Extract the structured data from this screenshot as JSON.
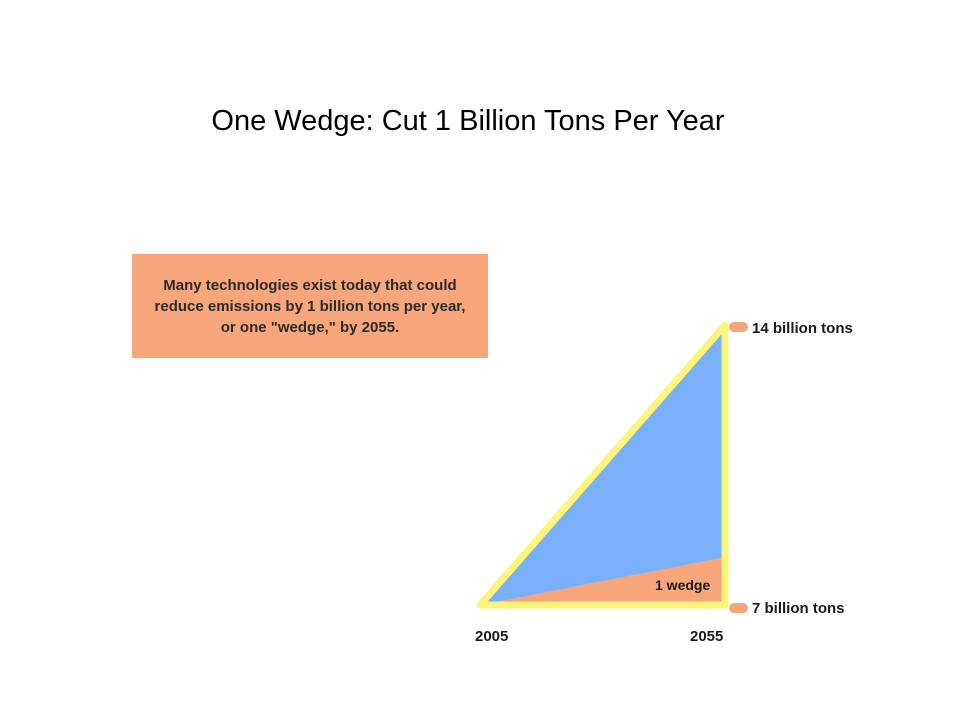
{
  "slide": {
    "title": "One Wedge: Cut 1 Billion Tons Per Year"
  },
  "callout": {
    "text": "Many technologies exist today that could\nreduce emissions by 1 billion tons per year,\nor one \"wedge,\" by 2055."
  },
  "diagram": {
    "top_label": "14 billion tons",
    "bottom_label": "7 billion tons",
    "wedge_label": "1 wedge",
    "start_year": "2005",
    "end_year": "2055"
  },
  "colors": {
    "triangle_fill": "#7ab0fa",
    "wedge_fill": "#f6a67a",
    "outline": "#fbf57a",
    "marker": "#f6a67a",
    "callout_bg": "#f6a67a"
  }
}
